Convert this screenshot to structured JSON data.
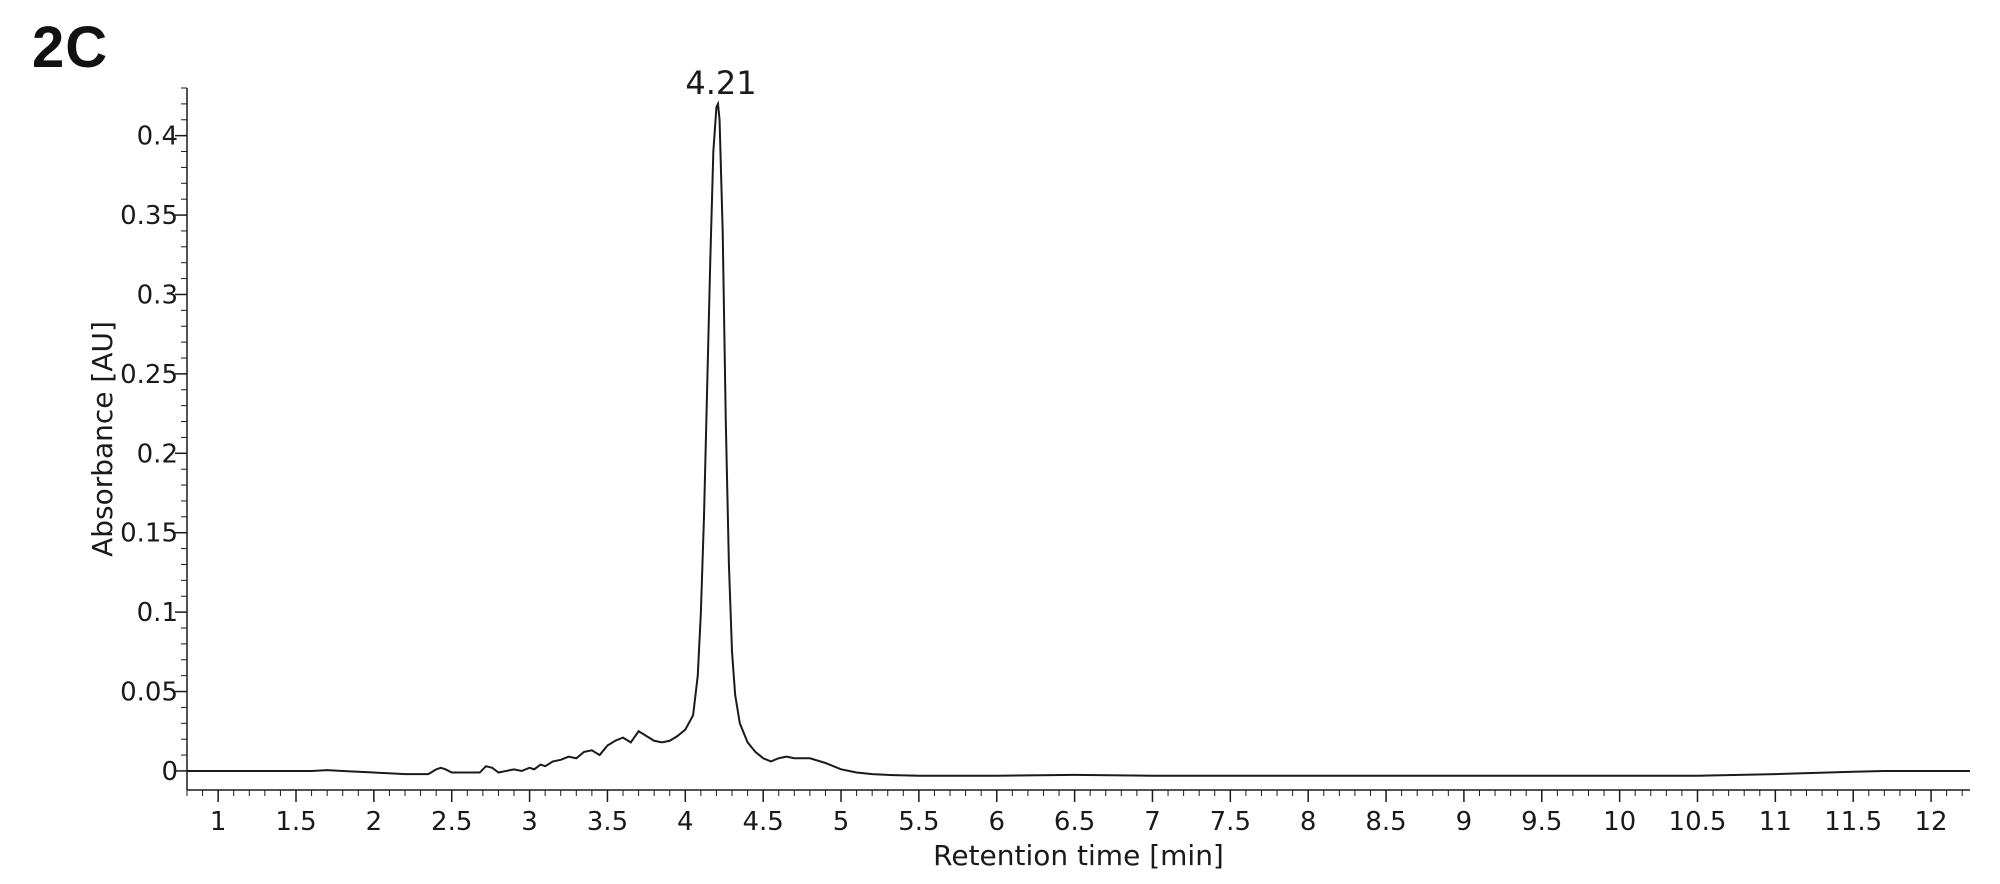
{
  "panel_label": "2C",
  "chart_data": {
    "type": "line",
    "title": "",
    "xlabel": "Retention time [min]",
    "ylabel": "Absorbance [AU]",
    "xlim": [
      0.8,
      12.25
    ],
    "ylim": [
      -0.012,
      0.43
    ],
    "x_ticks": [
      1,
      1.5,
      2,
      2.5,
      3,
      3.5,
      4,
      4.5,
      5,
      5.5,
      6,
      6.5,
      7,
      7.5,
      8,
      8.5,
      9,
      9.5,
      10,
      10.5,
      11,
      11.5,
      12
    ],
    "x_tick_labels": [
      "1",
      "1.5",
      "2",
      "2.5",
      "3",
      "3.5",
      "4",
      "4.5",
      "5",
      "5.5",
      "6",
      "6.5",
      "7",
      "7.5",
      "8",
      "8.5",
      "9",
      "9.5",
      "10",
      "10.5",
      "11",
      "11.5",
      "12"
    ],
    "y_ticks": [
      0,
      0.05,
      0.1,
      0.15,
      0.2,
      0.25,
      0.3,
      0.35,
      0.4
    ],
    "y_tick_labels": [
      "0",
      "0.05",
      "0.1",
      "0.15",
      "0.2",
      "0.25",
      "0.3",
      "0.35",
      "0.4"
    ],
    "grid": false,
    "line_color": "#1a1a1a",
    "annotations": [
      {
        "text": "4.21",
        "x": 4.21,
        "y": 0.42
      }
    ],
    "series": [
      {
        "x": [
          0.8,
          1.0,
          1.2,
          1.4,
          1.6,
          1.7,
          1.8,
          2.0,
          2.2,
          2.35,
          2.4,
          2.43,
          2.46,
          2.5,
          2.6,
          2.68,
          2.72,
          2.76,
          2.8,
          2.85,
          2.9,
          2.95,
          3.0,
          3.03,
          3.07,
          3.1,
          3.15,
          3.2,
          3.25,
          3.3,
          3.35,
          3.4,
          3.45,
          3.5,
          3.55,
          3.6,
          3.65,
          3.7,
          3.75,
          3.8,
          3.85,
          3.9,
          3.95,
          4.0,
          4.05,
          4.08,
          4.1,
          4.12,
          4.14,
          4.16,
          4.18,
          4.2,
          4.21,
          4.22,
          4.24,
          4.26,
          4.28,
          4.3,
          4.32,
          4.35,
          4.4,
          4.45,
          4.5,
          4.55,
          4.6,
          4.65,
          4.7,
          4.8,
          4.9,
          5.0,
          5.1,
          5.2,
          5.3,
          5.5,
          6.0,
          6.5,
          7.0,
          8.0,
          9.0,
          10.0,
          10.5,
          11.0,
          11.5,
          11.7,
          12.0,
          12.25
        ],
        "values": [
          0.0,
          0.0,
          0.0,
          0.0,
          0.0,
          0.0005,
          0.0,
          -0.001,
          -0.002,
          -0.002,
          0.001,
          0.002,
          0.001,
          -0.001,
          -0.001,
          -0.001,
          0.003,
          0.002,
          -0.001,
          0.0,
          0.001,
          0.0,
          0.002,
          0.001,
          0.004,
          0.003,
          0.006,
          0.007,
          0.009,
          0.008,
          0.012,
          0.013,
          0.01,
          0.016,
          0.019,
          0.021,
          0.018,
          0.025,
          0.022,
          0.019,
          0.018,
          0.019,
          0.022,
          0.026,
          0.035,
          0.06,
          0.1,
          0.16,
          0.24,
          0.32,
          0.39,
          0.418,
          0.42,
          0.41,
          0.34,
          0.22,
          0.13,
          0.075,
          0.048,
          0.03,
          0.018,
          0.012,
          0.008,
          0.006,
          0.008,
          0.009,
          0.008,
          0.008,
          0.005,
          0.001,
          -0.001,
          -0.002,
          -0.0025,
          -0.003,
          -0.003,
          -0.0025,
          -0.003,
          -0.003,
          -0.003,
          -0.003,
          -0.003,
          -0.002,
          -0.0005,
          0.0,
          0.0,
          0.0
        ]
      }
    ]
  }
}
